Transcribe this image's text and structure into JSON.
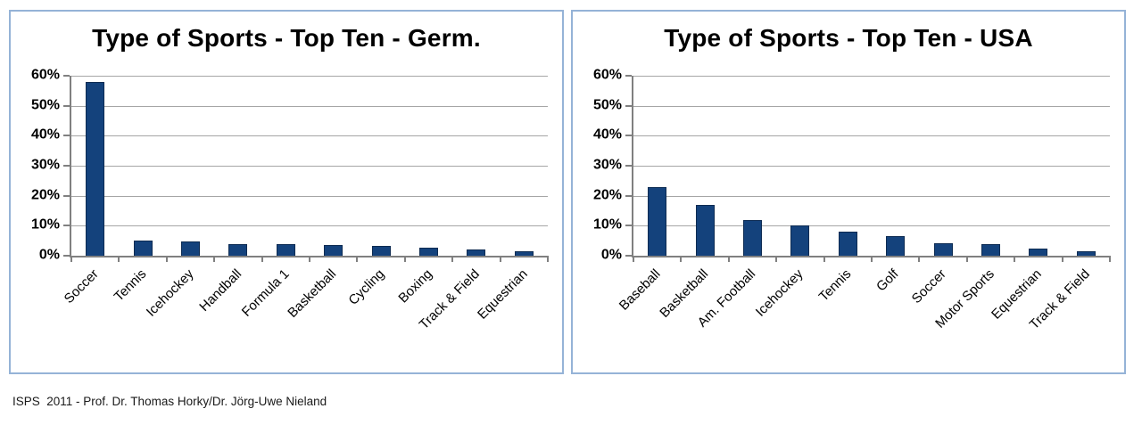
{
  "style": {
    "bar_color": "#14427C",
    "bar_border_color": "#0D2B52",
    "panel_border_color": "#95B3D7",
    "gridline_color": "#A6A6A6",
    "axis_color": "#808080",
    "text_color": "#000000",
    "background_color": "#FFFFFF"
  },
  "chart_data": [
    {
      "type": "bar",
      "title": "Type of Sports - Top Ten - Germ.",
      "categories": [
        "Soccer",
        "Tennis",
        "Icehockey",
        "Handball",
        "Formula 1",
        "Basketball",
        "Cycling",
        "Boxing",
        "Track & Field",
        "Equestrian"
      ],
      "values": [
        58,
        5,
        4.8,
        4,
        3.9,
        3.6,
        3.4,
        2.8,
        2.2,
        1.6
      ],
      "xlabel": "",
      "ylabel": "",
      "ylim": [
        0,
        60
      ],
      "ytick_step": 10,
      "ytick_suffix": "%",
      "grid": true,
      "legend": "none",
      "x_label_rotation_deg": 45
    },
    {
      "type": "bar",
      "title": "Type of Sports - Top Ten - USA",
      "categories": [
        "Baseball",
        "Basketball",
        "Am. Football",
        "Icehockey",
        "Tennis",
        "Golf",
        "Soccer",
        "Motor Sports",
        "Equestrian",
        "Track & Field"
      ],
      "values": [
        23,
        17,
        12,
        10,
        8,
        6.5,
        4.3,
        4,
        2.5,
        1.5
      ],
      "xlabel": "",
      "ylabel": "",
      "ylim": [
        0,
        60
      ],
      "ytick_step": 10,
      "ytick_suffix": "%",
      "grid": true,
      "legend": "none",
      "x_label_rotation_deg": 45
    }
  ],
  "footer": {
    "credit": "ISPS  2011 - Prof. Dr. Thomas Horky/Dr. Jörg-Uwe Nieland"
  }
}
